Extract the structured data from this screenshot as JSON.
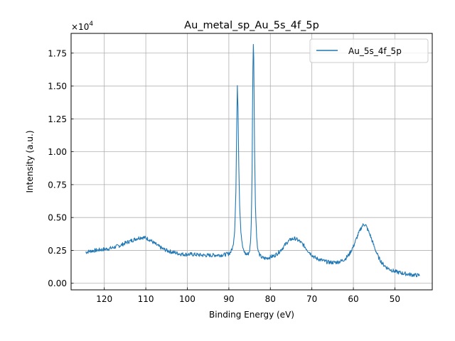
{
  "chart_data": {
    "type": "line",
    "title": "Au_metal_sp_Au_5s_4f_5p",
    "xlabel": "Binding Energy (eV)",
    "ylabel": "Intensity (a.u.)",
    "y_multiplier_label": "×10",
    "y_multiplier_exponent": "4",
    "xlim": [
      128,
      41
    ],
    "x_reversed": true,
    "ylim": [
      -0.05,
      1.9
    ],
    "y_unit_scale": 10000,
    "grid": true,
    "legend_position": "top-right",
    "x_ticks": [
      120,
      110,
      100,
      90,
      80,
      70,
      60,
      50
    ],
    "x_tick_labels": [
      "120",
      "110",
      "100",
      "90",
      "80",
      "70",
      "60",
      "50"
    ],
    "y_ticks": [
      0.0,
      0.25,
      0.5,
      0.75,
      1.0,
      1.25,
      1.5,
      1.75
    ],
    "y_tick_labels": [
      "0.00",
      "0.25",
      "0.50",
      "0.75",
      "1.00",
      "1.25",
      "1.50",
      "1.75"
    ],
    "series": [
      {
        "name": "Au_5s_4f_5p",
        "color": "#1f77b4",
        "x": [
          124.5,
          123,
          122,
          121,
          120,
          119,
          118,
          117,
          116,
          115,
          114,
          113,
          112,
          111,
          110,
          109,
          108,
          107,
          106,
          105,
          104,
          103,
          102,
          101,
          100,
          99,
          98,
          97,
          96,
          95,
          94,
          93,
          92,
          91,
          90,
          89.5,
          89,
          88.6,
          88.3,
          88.1,
          87.95,
          87.8,
          87.6,
          87.4,
          87.1,
          86.8,
          86.5,
          86,
          85.5,
          85.2,
          85,
          84.8,
          84.6,
          84.4,
          84.3,
          84.2,
          84.1,
          84.0,
          83.9,
          83.8,
          83.6,
          83.3,
          83,
          82.5,
          82,
          81.5,
          81,
          80,
          79,
          78,
          77,
          76,
          75,
          74,
          73,
          72,
          71,
          70,
          69,
          68,
          67,
          66,
          65,
          64,
          63,
          62,
          61,
          60,
          59,
          58,
          57.5,
          57,
          56,
          55,
          54,
          53,
          52,
          51,
          50,
          49,
          48,
          47,
          46,
          45,
          44
        ],
        "y": [
          0.236,
          0.247,
          0.25,
          0.255,
          0.258,
          0.263,
          0.27,
          0.28,
          0.29,
          0.305,
          0.318,
          0.33,
          0.343,
          0.35,
          0.345,
          0.33,
          0.305,
          0.283,
          0.263,
          0.25,
          0.24,
          0.233,
          0.225,
          0.22,
          0.22,
          0.22,
          0.218,
          0.215,
          0.213,
          0.212,
          0.213,
          0.215,
          0.215,
          0.218,
          0.225,
          0.24,
          0.28,
          0.4,
          0.7,
          1.2,
          1.49,
          1.35,
          0.9,
          0.6,
          0.4,
          0.3,
          0.25,
          0.225,
          0.22,
          0.23,
          0.25,
          0.3,
          0.45,
          0.85,
          1.3,
          1.65,
          1.82,
          1.72,
          1.4,
          1.0,
          0.6,
          0.35,
          0.25,
          0.21,
          0.195,
          0.19,
          0.19,
          0.2,
          0.21,
          0.235,
          0.27,
          0.31,
          0.335,
          0.34,
          0.32,
          0.29,
          0.25,
          0.215,
          0.19,
          0.18,
          0.168,
          0.16,
          0.158,
          0.16,
          0.168,
          0.185,
          0.22,
          0.28,
          0.36,
          0.43,
          0.45,
          0.44,
          0.37,
          0.28,
          0.2,
          0.15,
          0.12,
          0.103,
          0.09,
          0.082,
          0.075,
          0.07,
          0.065,
          0.062,
          0.06
        ]
      }
    ]
  }
}
